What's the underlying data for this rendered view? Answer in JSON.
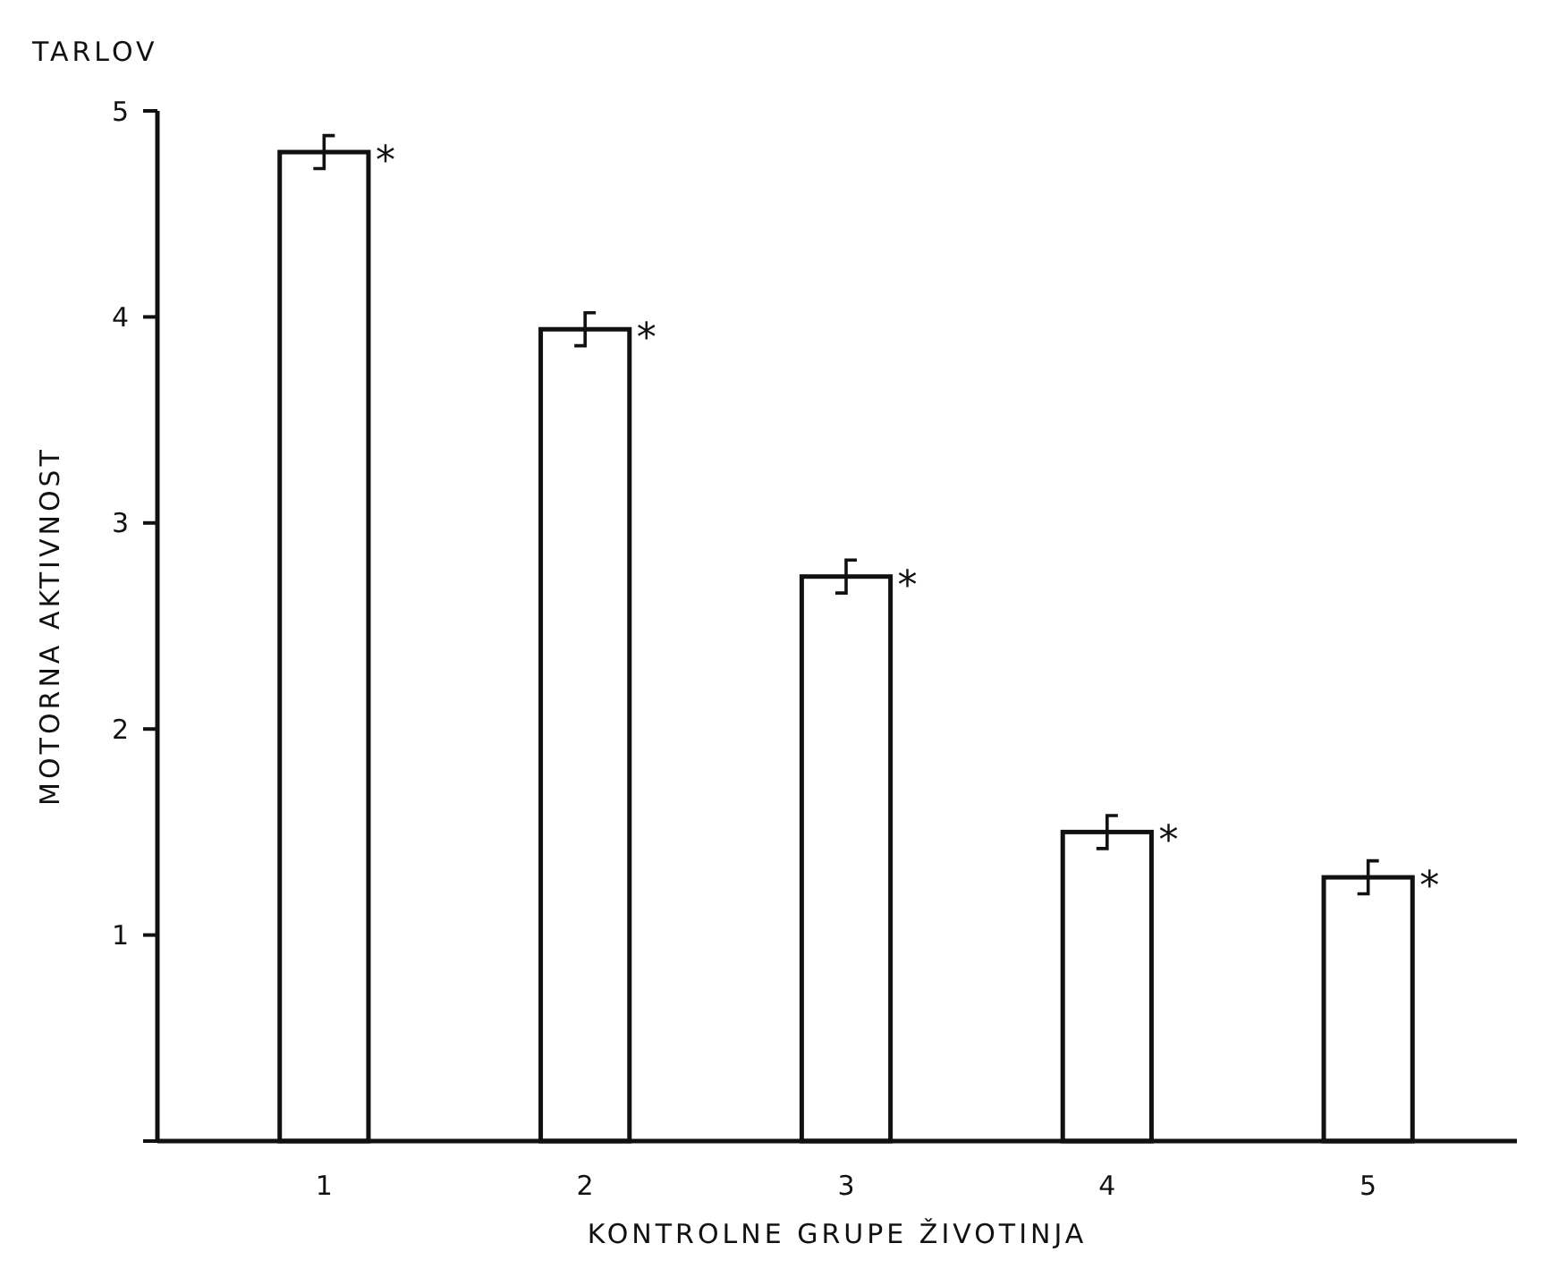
{
  "chart_data": {
    "type": "bar",
    "xlabel": "KONTROLNE GRUPE ŽIVOTINJA",
    "ylabel": "MOTORNA AKTIVNOST",
    "categories": [
      "1",
      "2",
      "3",
      "4",
      "5"
    ],
    "values": [
      4.8,
      3.94,
      2.74,
      1.5,
      1.28
    ],
    "errors": [
      0.08,
      0.08,
      0.08,
      0.08,
      0.08
    ],
    "color": "#ffffff",
    "ylim": [
      0,
      5
    ],
    "yticks": [
      {
        "value": 0,
        "label": null
      },
      1,
      2,
      3,
      4,
      5
    ],
    "grid": false,
    "annotations": [
      "TARLOV",
      {
        "text": "*",
        "x": "1",
        "y": 4.8
      },
      {
        "text": "*",
        "x": "2",
        "y": 3.94
      },
      {
        "text": "*",
        "x": "3",
        "y": 2.74
      },
      {
        "text": "*",
        "x": "4",
        "y": 1.5
      },
      {
        "text": "*",
        "x": "5",
        "y": 1.28
      }
    ]
  }
}
